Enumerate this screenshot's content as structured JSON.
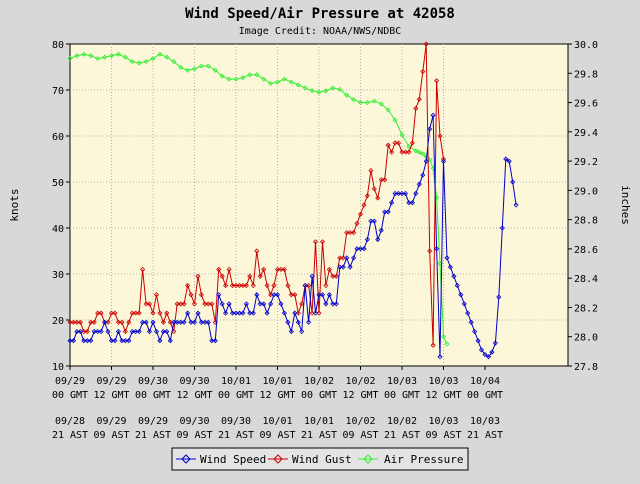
{
  "chart_data": {
    "type": "line",
    "title": "Wind Speed/Air Pressure at 42058",
    "subtitle": "Image Credit: NOAA/NWS/NDBC",
    "ylabel_left": "knots",
    "ylabel_right": "inches",
    "ylim_left": [
      10,
      80
    ],
    "ylim_right": [
      27.8,
      30.0
    ],
    "left_ticks": [
      "10",
      "20",
      "30",
      "40",
      "50",
      "60",
      "70",
      "80"
    ],
    "right_ticks": [
      "27.8",
      "28.0",
      "28.2",
      "28.4",
      "28.6",
      "28.8",
      "29.0",
      "29.2",
      "29.4",
      "29.6",
      "29.8",
      "30.0"
    ],
    "x_unit": "hours since 09/29 00 GMT",
    "xlim": [
      0,
      144
    ],
    "x_ticks_gmt": [
      [
        "09/29",
        "00 GMT"
      ],
      [
        "09/29",
        "12 GMT"
      ],
      [
        "09/30",
        "00 GMT"
      ],
      [
        "09/30",
        "12 GMT"
      ],
      [
        "10/01",
        "00 GMT"
      ],
      [
        "10/01",
        "12 GMT"
      ],
      [
        "10/02",
        "00 GMT"
      ],
      [
        "10/02",
        "12 GMT"
      ],
      [
        "10/03",
        "00 GMT"
      ],
      [
        "10/03",
        "12 GMT"
      ],
      [
        "10/04",
        "00 GMT"
      ]
    ],
    "x_ticks_ast": [
      [
        "09/28",
        "21 AST"
      ],
      [
        "09/29",
        "09 AST"
      ],
      [
        "09/29",
        "21 AST"
      ],
      [
        "09/30",
        "09 AST"
      ],
      [
        "09/30",
        "21 AST"
      ],
      [
        "10/01",
        "09 AST"
      ],
      [
        "10/01",
        "21 AST"
      ],
      [
        "10/02",
        "09 AST"
      ],
      [
        "10/02",
        "21 AST"
      ],
      [
        "10/03",
        "09 AST"
      ],
      [
        "10/03",
        "21 AST"
      ]
    ],
    "grid": true,
    "legend_position": "bottom-center",
    "series": [
      {
        "name": "Wind Speed",
        "axis": "left",
        "color": "#0000cc",
        "x": [
          0,
          1,
          2,
          3,
          4,
          5,
          6,
          7,
          8,
          9,
          10,
          11,
          12,
          13,
          14,
          15,
          16,
          17,
          18,
          19,
          20,
          21,
          22,
          23,
          24,
          25,
          26,
          27,
          28,
          29,
          30,
          31,
          32,
          33,
          34,
          35,
          36,
          37,
          38,
          39,
          40,
          41,
          42,
          43,
          44,
          45,
          46,
          47,
          48,
          49,
          50,
          51,
          52,
          53,
          54,
          55,
          56,
          57,
          58,
          59,
          60,
          61,
          62,
          63,
          64,
          65,
          66,
          67,
          68,
          69,
          70,
          71,
          72,
          73,
          74,
          75,
          76,
          77,
          78,
          79,
          80,
          81,
          82,
          83,
          84,
          85,
          86,
          87,
          88,
          89,
          90,
          91,
          92,
          93,
          94,
          95,
          96,
          97,
          98,
          99,
          100,
          101,
          102,
          103,
          104,
          105,
          106,
          107,
          108,
          109,
          110,
          111,
          112,
          113,
          114,
          115,
          116,
          117,
          118,
          119,
          120,
          121,
          122,
          123,
          124,
          125,
          126,
          127,
          128,
          129
        ],
        "values": [
          15.5,
          15.5,
          17.5,
          17.5,
          15.5,
          15.5,
          15.5,
          17.5,
          17.5,
          17.5,
          19.5,
          17.5,
          15.5,
          15.5,
          17.5,
          15.5,
          15.5,
          15.5,
          17.5,
          17.5,
          17.5,
          19.5,
          19.5,
          17.5,
          19.5,
          17.5,
          15.5,
          17.5,
          17.5,
          15.5,
          19.5,
          19.5,
          19.5,
          19.5,
          21.5,
          19.5,
          19.5,
          21.5,
          19.5,
          19.5,
          19.5,
          15.5,
          15.5,
          25.5,
          23.5,
          21.5,
          23.5,
          21.5,
          21.5,
          21.5,
          21.5,
          23.5,
          21.5,
          21.5,
          25.5,
          23.5,
          23.5,
          21.5,
          23.5,
          25.5,
          25.5,
          23.5,
          21.5,
          19.5,
          17.5,
          21.5,
          19.5,
          17.5,
          27.5,
          19.5,
          29.5,
          21.5,
          25.5,
          25.5,
          23.5,
          25.5,
          23.5,
          23.5,
          31.5,
          31.5,
          33.5,
          31.5,
          33.5,
          35.5,
          35.5,
          35.5,
          37.5,
          41.5,
          41.5,
          37.5,
          39.5,
          43.5,
          43.5,
          45.5,
          47.5,
          47.5,
          47.5,
          47.5,
          45.5,
          45.5,
          47.5,
          49.5,
          51.5,
          54.5,
          61.5,
          64.5,
          35.5,
          12.0,
          54.5,
          33.5,
          31.5,
          29.5,
          27.5,
          25.5,
          23.5,
          21.5,
          19.5,
          17.5,
          15.5,
          13.5,
          12.5,
          12.0,
          13.0,
          15.0,
          25.0,
          40.0,
          55.0,
          54.5,
          50.0,
          45.0
        ]
      },
      {
        "name": "Wind Gust",
        "axis": "left",
        "color": "#cc0000",
        "x": [
          0,
          1,
          2,
          3,
          4,
          5,
          6,
          7,
          8,
          9,
          10,
          11,
          12,
          13,
          14,
          15,
          16,
          17,
          18,
          19,
          20,
          21,
          22,
          23,
          24,
          25,
          26,
          27,
          28,
          29,
          30,
          31,
          32,
          33,
          34,
          35,
          36,
          37,
          38,
          39,
          40,
          41,
          42,
          43,
          44,
          45,
          46,
          47,
          48,
          49,
          50,
          51,
          52,
          53,
          54,
          55,
          56,
          57,
          58,
          59,
          60,
          61,
          62,
          63,
          64,
          65,
          66,
          67,
          68,
          69,
          70,
          71,
          72,
          73,
          74,
          75,
          76,
          77,
          78,
          79,
          80,
          81,
          82,
          83,
          84,
          85,
          86,
          87,
          88,
          89,
          90,
          91,
          92,
          93,
          94,
          95,
          96,
          97,
          98,
          99,
          100,
          101,
          102,
          103,
          104,
          105,
          106,
          107,
          108
        ],
        "values": [
          19.5,
          19.5,
          19.5,
          19.5,
          17.5,
          17.5,
          19.5,
          19.5,
          21.5,
          21.5,
          19.5,
          19.5,
          21.5,
          21.5,
          19.5,
          19.5,
          17.5,
          19.5,
          21.5,
          21.5,
          21.5,
          31.0,
          23.5,
          23.5,
          21.5,
          25.5,
          21.5,
          19.5,
          21.5,
          19.5,
          17.5,
          23.5,
          23.5,
          23.5,
          27.5,
          25.5,
          23.5,
          29.5,
          25.5,
          23.5,
          23.5,
          23.5,
          19.5,
          31.0,
          29.5,
          27.5,
          31.0,
          27.5,
          27.5,
          27.5,
          27.5,
          27.5,
          29.5,
          27.5,
          35.0,
          29.5,
          31.0,
          27.5,
          25.5,
          27.5,
          31.0,
          31.0,
          31.0,
          27.5,
          25.5,
          25.5,
          21.5,
          23.5,
          27.5,
          27.5,
          21.5,
          37.0,
          21.5,
          37.0,
          27.5,
          31.0,
          29.5,
          29.5,
          33.5,
          33.5,
          39.0,
          39.0,
          39.0,
          41.0,
          43.0,
          45.0,
          47.0,
          52.5,
          48.5,
          46.5,
          50.5,
          50.5,
          58.0,
          56.5,
          58.5,
          58.5,
          56.5,
          56.5,
          56.5,
          58.5,
          66.0,
          68.0,
          74.0,
          80.0,
          35.0,
          14.5,
          72.0,
          60.0,
          55.0
        ]
      },
      {
        "name": "Air Pressure",
        "axis": "right",
        "color": "#33ee33",
        "x": [
          0,
          2,
          4,
          6,
          8,
          10,
          12,
          14,
          16,
          18,
          20,
          22,
          24,
          26,
          28,
          30,
          32,
          34,
          36,
          38,
          40,
          42,
          44,
          46,
          48,
          50,
          52,
          54,
          56,
          58,
          60,
          62,
          64,
          66,
          68,
          70,
          72,
          74,
          76,
          78,
          80,
          82,
          84,
          86,
          88,
          90,
          92,
          94,
          96,
          98,
          100,
          101,
          102,
          103,
          104,
          105,
          106,
          107,
          108,
          109
        ],
        "values": [
          29.9,
          29.92,
          29.93,
          29.92,
          29.9,
          29.91,
          29.92,
          29.93,
          29.91,
          29.88,
          29.87,
          29.88,
          29.9,
          29.93,
          29.91,
          29.88,
          29.84,
          29.82,
          29.83,
          29.85,
          29.85,
          29.82,
          29.78,
          29.76,
          29.76,
          29.77,
          29.79,
          29.79,
          29.76,
          29.73,
          29.74,
          29.76,
          29.74,
          29.72,
          29.7,
          29.68,
          29.67,
          29.68,
          29.7,
          29.69,
          29.65,
          29.62,
          29.6,
          29.6,
          29.61,
          29.59,
          29.55,
          29.48,
          29.38,
          29.3,
          29.27,
          29.26,
          29.25,
          29.23,
          29.21,
          29.15,
          28.95,
          28.5,
          28.0,
          27.95
        ]
      }
    ]
  }
}
